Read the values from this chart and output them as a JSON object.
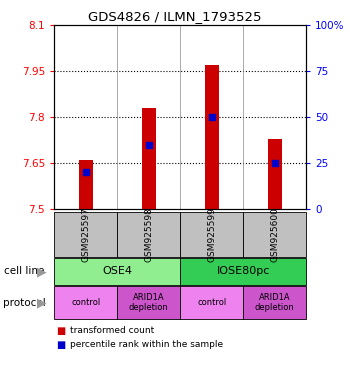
{
  "title": "GDS4826 / ILMN_1793525",
  "samples": [
    "GSM925597",
    "GSM925598",
    "GSM925599",
    "GSM925600"
  ],
  "transformed_counts": [
    7.66,
    7.83,
    7.97,
    7.73
  ],
  "percentile_ranks": [
    20,
    35,
    50,
    25
  ],
  "ylim_left": [
    7.5,
    8.1
  ],
  "ylim_right": [
    0,
    100
  ],
  "yticks_left": [
    7.5,
    7.65,
    7.8,
    7.95,
    8.1
  ],
  "yticks_right": [
    0,
    25,
    50,
    75,
    100
  ],
  "ytick_labels_left": [
    "7.5",
    "7.65",
    "7.8",
    "7.95",
    "8.1"
  ],
  "ytick_labels_right": [
    "0",
    "25",
    "50",
    "75",
    "100%"
  ],
  "protocols": [
    "control",
    "ARID1A\ndepletion",
    "control",
    "ARID1A\ndepletion"
  ],
  "bar_color": "#CC0000",
  "dot_color": "#0000CC",
  "sample_box_color": "#C0C0C0",
  "cell_line_ose4_color": "#90EE90",
  "cell_line_iose_color": "#33CC55",
  "protocol_control_color": "#EE82EE",
  "protocol_depletion_color": "#CC55CC"
}
